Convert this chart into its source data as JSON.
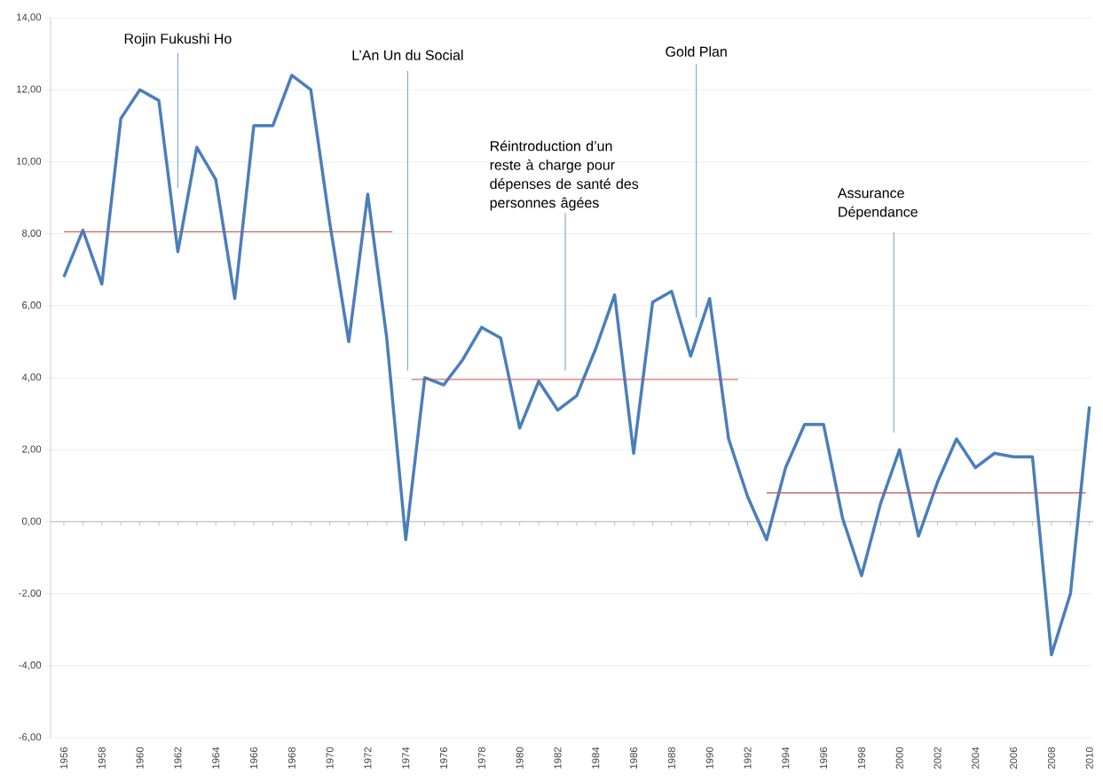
{
  "chart_data": {
    "type": "line",
    "x": [
      1956,
      1957,
      1958,
      1959,
      1960,
      1961,
      1962,
      1963,
      1964,
      1965,
      1966,
      1967,
      1968,
      1969,
      1970,
      1971,
      1972,
      1973,
      1974,
      1975,
      1976,
      1977,
      1978,
      1979,
      1980,
      1981,
      1982,
      1983,
      1984,
      1985,
      1986,
      1987,
      1988,
      1989,
      1990,
      1991,
      1992,
      1993,
      1994,
      1995,
      1996,
      1997,
      1998,
      1999,
      2000,
      2001,
      2002,
      2003,
      2004,
      2005,
      2006,
      2007,
      2008,
      2009,
      2010
    ],
    "series": [
      {
        "color": "#4a7ebb",
        "values": [
          6.8,
          8.1,
          6.6,
          11.2,
          12.0,
          11.7,
          7.5,
          10.4,
          9.5,
          6.2,
          11.0,
          11.0,
          12.4,
          12.0,
          8.3,
          5.0,
          9.1,
          5.1,
          -0.5,
          4.0,
          3.8,
          4.5,
          5.4,
          5.1,
          2.6,
          3.9,
          3.1,
          3.5,
          4.8,
          6.3,
          1.9,
          6.1,
          6.4,
          4.6,
          6.2,
          2.3,
          0.7,
          -0.5,
          1.5,
          2.7,
          2.7,
          0.1,
          -1.5,
          0.5,
          2.0,
          -0.4,
          1.1,
          2.3,
          1.5,
          1.9,
          1.8,
          1.8,
          -3.7,
          -2.0,
          3.2
        ]
      },
      {
        "type": "line",
        "color": "#c0504d",
        "x": [
          1956,
          1973.3
        ],
        "values": [
          8.05,
          8.05
        ]
      },
      {
        "type": "line",
        "color": "#c0504d",
        "x": [
          1974.3,
          1991.5
        ],
        "values": [
          3.95,
          3.95
        ]
      },
      {
        "type": "line",
        "color": "#c0504d",
        "x": [
          1993,
          2009.8
        ],
        "values": [
          0.8,
          0.8
        ]
      }
    ],
    "xlim": [
      1955.3,
      2010.2
    ],
    "xticks": [
      {
        "value": 1956,
        "label": "1956"
      },
      {
        "value": 1957,
        "label": null
      },
      {
        "value": 1958,
        "label": "1958"
      },
      {
        "value": 1959,
        "label": null
      },
      {
        "value": 1960,
        "label": "1960"
      },
      {
        "value": 1961,
        "label": null
      },
      {
        "value": 1962,
        "label": "1962"
      },
      {
        "value": 1963,
        "label": null
      },
      {
        "value": 1964,
        "label": "1964"
      },
      {
        "value": 1965,
        "label": null
      },
      {
        "value": 1966,
        "label": "1966"
      },
      {
        "value": 1967,
        "label": null
      },
      {
        "value": 1968,
        "label": "1968"
      },
      {
        "value": 1969,
        "label": null
      },
      {
        "value": 1970,
        "label": "1970"
      },
      {
        "value": 1971,
        "label": null
      },
      {
        "value": 1972,
        "label": "1972"
      },
      {
        "value": 1973,
        "label": null
      },
      {
        "value": 1974,
        "label": "1974"
      },
      {
        "value": 1975,
        "label": null
      },
      {
        "value": 1976,
        "label": "1976"
      },
      {
        "value": 1977,
        "label": null
      },
      {
        "value": 1978,
        "label": "1978"
      },
      {
        "value": 1979,
        "label": null
      },
      {
        "value": 1980,
        "label": "1980"
      },
      {
        "value": 1981,
        "label": null
      },
      {
        "value": 1982,
        "label": "1982"
      },
      {
        "value": 1983,
        "label": null
      },
      {
        "value": 1984,
        "label": "1984"
      },
      {
        "value": 1985,
        "label": null
      },
      {
        "value": 1986,
        "label": "1986"
      },
      {
        "value": 1987,
        "label": null
      },
      {
        "value": 1988,
        "label": "1988"
      },
      {
        "value": 1989,
        "label": null
      },
      {
        "value": 1990,
        "label": "1990"
      },
      {
        "value": 1991,
        "label": null
      },
      {
        "value": 1992,
        "label": "1992"
      },
      {
        "value": 1993,
        "label": null
      },
      {
        "value": 1994,
        "label": "1994"
      },
      {
        "value": 1995,
        "label": null
      },
      {
        "value": 1996,
        "label": "1996"
      },
      {
        "value": 1997,
        "label": null
      },
      {
        "value": 1998,
        "label": "1998"
      },
      {
        "value": 1999,
        "label": null
      },
      {
        "value": 2000,
        "label": "2000"
      },
      {
        "value": 2001,
        "label": null
      },
      {
        "value": 2002,
        "label": "2002"
      },
      {
        "value": 2003,
        "label": null
      },
      {
        "value": 2004,
        "label": "2004"
      },
      {
        "value": 2005,
        "label": null
      },
      {
        "value": 2006,
        "label": "2006"
      },
      {
        "value": 2007,
        "label": null
      },
      {
        "value": 2008,
        "label": "2008"
      },
      {
        "value": 2009,
        "label": null
      },
      {
        "value": 2010,
        "label": "2010"
      }
    ],
    "ylim": [
      -6,
      14
    ],
    "yticks": [
      {
        "value": -6,
        "label": "-6,00"
      },
      {
        "value": -4,
        "label": "-4,00"
      },
      {
        "value": -2,
        "label": "-2,00"
      },
      {
        "value": 0,
        "label": "0,00"
      },
      {
        "value": 2,
        "label": "2,00"
      },
      {
        "value": 4,
        "label": "4,00"
      },
      {
        "value": 6,
        "label": "6,00"
      },
      {
        "value": 8,
        "label": "8,00"
      },
      {
        "value": 10,
        "label": "10,00"
      },
      {
        "value": 12,
        "label": "12,00"
      },
      {
        "value": 14,
        "label": "14,00"
      }
    ],
    "grid": "y",
    "marker": "none",
    "line_style": "solid",
    "ref_lines": [
      {
        "axis": "x",
        "value": 1962,
        "label": "Rojin Fukushi Ho",
        "color": "#4f81bd"
      },
      {
        "axis": "x",
        "value": 1974.1,
        "label": "L’An Un du Social",
        "color": "#4f81bd"
      },
      {
        "axis": "x",
        "value": 1982.4,
        "label": "Réintroduction d’un reste à charge pour dépenses de santé des personnes âgées",
        "color": "#4f81bd"
      },
      {
        "axis": "x",
        "value": 1989.3,
        "label": "Gold Plan",
        "color": "#4f81bd"
      },
      {
        "axis": "x",
        "value": 1999.7,
        "label": "Assurance Dépendance",
        "color": "#4f81bd"
      }
    ]
  }
}
